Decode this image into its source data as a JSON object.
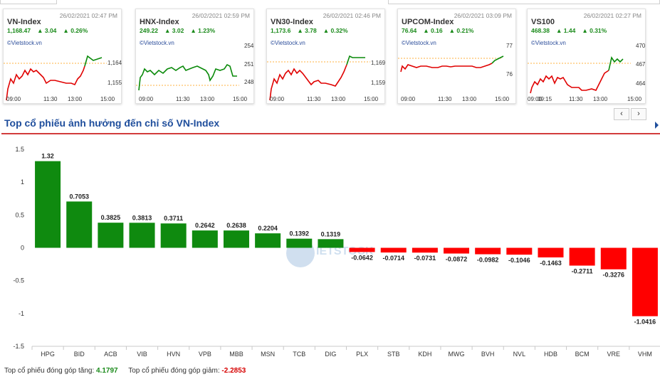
{
  "cards": [
    {
      "name": "VN-Index",
      "timestamp": "26/02/2021 02:47 PM",
      "value": "1,168.47",
      "change": "▲ 3.04",
      "percent": "▲ 0.26%",
      "brand": "©Vietstock.vn",
      "yticks": [
        "1,164",
        "1,155"
      ],
      "xticks": [
        "09:00",
        "11:30",
        "13:00",
        "15:00"
      ]
    },
    {
      "name": "HNX-Index",
      "timestamp": "26/02/2021 02:59 PM",
      "value": "249.22",
      "change": "▲ 3.02",
      "percent": "▲ 1.23%",
      "brand": "©Vietstock.vn",
      "yticks": [
        "254",
        "251",
        "248"
      ],
      "xticks": [
        "09:00",
        "11:30",
        "13:00",
        "15:00"
      ]
    },
    {
      "name": "VN30-Index",
      "timestamp": "26/02/2021 02:46 PM",
      "value": "1,173.6",
      "change": "▲ 3.78",
      "percent": "▲ 0.32%",
      "brand": "©Vietstock.vn",
      "yticks": [
        "1,169",
        "1,159"
      ],
      "xticks": [
        "09:00",
        "11:30",
        "13:00",
        "15:00"
      ]
    },
    {
      "name": "UPCOM-Index",
      "timestamp": "26/02/2021 03:09 PM",
      "value": "76.64",
      "change": "▲ 0.16",
      "percent": "▲ 0.21%",
      "brand": "©Vietstock.vn",
      "yticks": [
        "77",
        "76"
      ],
      "xticks": [
        "09:00",
        "11:30",
        "13:00",
        "15:00"
      ]
    },
    {
      "name": "VS100",
      "timestamp": "26/02/2021 02:27 PM",
      "value": "468.38",
      "change": "▲ 1.44",
      "percent": "▲ 0.31%",
      "brand": "©Vietstock.vn",
      "yticks": [
        "470",
        "467",
        "464"
      ],
      "xticks": [
        "09:00",
        "09:15",
        "11:30",
        "13:00",
        "15:00"
      ]
    }
  ],
  "nav": {
    "prev": "‹",
    "next": "›"
  },
  "section_title": "Top cổ phiếu ảnh hưởng đến chỉ số VN-Index",
  "footer": {
    "pos_label": "Top cổ phiếu đóng góp tăng:",
    "pos_value": "4.1797",
    "neg_label": "Top cổ phiếu đóng góp giảm:",
    "neg_value": "-2.2853"
  },
  "colors": {
    "positive": "#0f8a0f",
    "negative": "#ff0000",
    "accent": "#1f4e9c",
    "rule": "#d23c3c"
  },
  "chart_data": {
    "type": "bar",
    "categories": [
      "HPG",
      "BID",
      "ACB",
      "VIB",
      "HVN",
      "VPB",
      "MBB",
      "MSN",
      "TCB",
      "DIG",
      "PLX",
      "STB",
      "KDH",
      "MWG",
      "BVH",
      "NVL",
      "HDB",
      "BCM",
      "VRE",
      "VHM"
    ],
    "values": [
      1.32,
      0.7053,
      0.3825,
      0.3813,
      0.3711,
      0.2642,
      0.2638,
      0.2204,
      0.1392,
      0.1319,
      -0.0642,
      -0.0714,
      -0.0731,
      -0.0872,
      -0.0982,
      -0.1046,
      -0.1463,
      -0.2711,
      -0.3276,
      -1.0416
    ],
    "data_labels": [
      "1.32",
      "0.7053",
      "0.3825",
      "0.3813",
      "0.3711",
      "0.2642",
      "0.2638",
      "0.2204",
      "0.1392",
      "0.1319",
      "-0.0642",
      "-0.0714",
      "-0.0731",
      "-0.0872",
      "-0.0982",
      "-0.1046",
      "-0.1463",
      "-0.2711",
      "-0.3276",
      "-1.0416"
    ],
    "yticks": [
      "1.5",
      "1",
      "0.5",
      "0",
      "-0.5",
      "-1",
      "-1.5"
    ],
    "ylim": [
      -1.5,
      1.5
    ],
    "grid": false,
    "legend": "none"
  }
}
